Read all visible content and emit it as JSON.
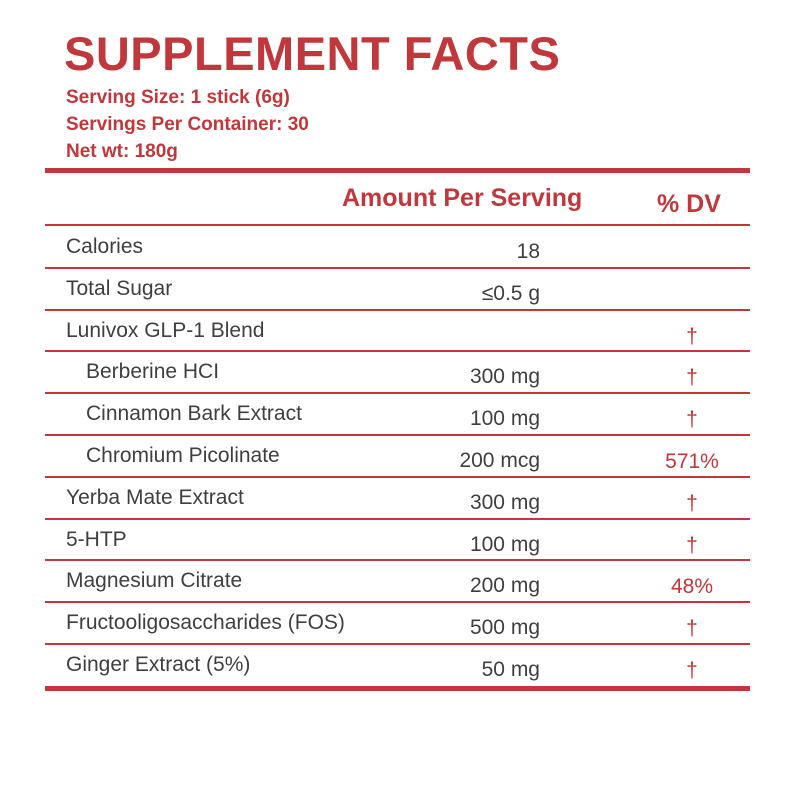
{
  "header": {
    "title": "SUPPLEMENT FACTS",
    "lines": [
      "Serving Size: 1 stick (6g)",
      "Servings Per Container: 30",
      "Net wt: 180g"
    ]
  },
  "table": {
    "columns": [
      "Amount Per Serving",
      "% DV"
    ],
    "rows": [
      {
        "name": "Calories",
        "amount": "18"
      },
      {
        "name": "Total Sugar",
        "amount": "≤0.5 g"
      },
      {
        "name": "Lunivox GLP-1 Blend",
        "dv": "†",
        "components": [
          {
            "name": "Berberine HCI",
            "amount": "300 mg",
            "dv": "†"
          },
          {
            "name": "Cinnamon Bark Extract",
            "amount": "100 mg",
            "dv": "†"
          },
          {
            "name": "Chromium Picolinate",
            "amount": "200 mcg",
            "dv": "571%"
          }
        ]
      },
      {
        "name": "Yerba Mate Extract",
        "amount": "300 mg",
        "dv": "†"
      },
      {
        "name": "5-HTP",
        "amount": "100 mg",
        "dv": "†"
      },
      {
        "name": "Magnesium Citrate",
        "amount": "200 mg",
        "dv": "48%"
      },
      {
        "name": "Fructooligosaccharides (FOS)",
        "amount": "500 mg",
        "dv": "†"
      },
      {
        "name": "Ginger Extract (5%)",
        "amount": "50 mg",
        "dv": "†"
      }
    ]
  }
}
